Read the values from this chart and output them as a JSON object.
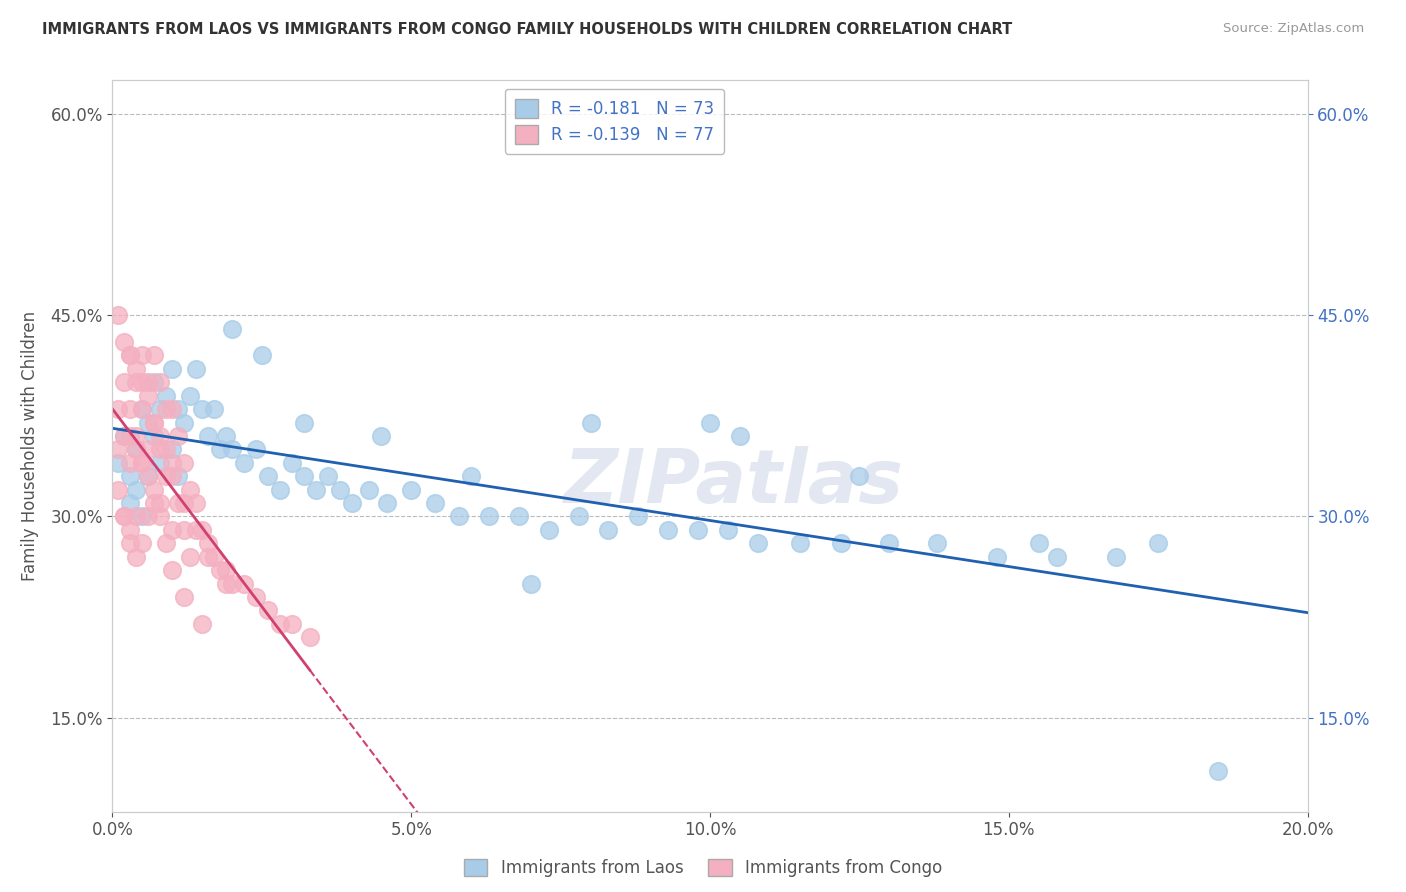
{
  "title": "IMMIGRANTS FROM LAOS VS IMMIGRANTS FROM CONGO FAMILY HOUSEHOLDS WITH CHILDREN CORRELATION CHART",
  "source": "Source: ZipAtlas.com",
  "ylabel": "Family Households with Children",
  "x_label_laos": "Immigrants from Laos",
  "x_label_congo": "Immigrants from Congo",
  "xlim": [
    0.0,
    0.2
  ],
  "ylim": [
    0.08,
    0.625
  ],
  "xticks": [
    0.0,
    0.05,
    0.1,
    0.15,
    0.2
  ],
  "yticks": [
    0.15,
    0.3,
    0.45,
    0.6
  ],
  "R_laos": -0.181,
  "N_laos": 73,
  "R_congo": -0.139,
  "N_congo": 77,
  "color_laos": "#a8cce8",
  "color_congo": "#f4afc0",
  "trendline_color_laos": "#2060b0",
  "trendline_color_congo": "#d04070",
  "watermark": "ZIPatlas",
  "background_color": "#ffffff",
  "laos_x": [
    0.001,
    0.002,
    0.003,
    0.003,
    0.004,
    0.004,
    0.005,
    0.005,
    0.006,
    0.006,
    0.007,
    0.007,
    0.008,
    0.008,
    0.009,
    0.01,
    0.01,
    0.011,
    0.011,
    0.012,
    0.013,
    0.014,
    0.015,
    0.016,
    0.017,
    0.018,
    0.019,
    0.02,
    0.022,
    0.024,
    0.026,
    0.028,
    0.03,
    0.032,
    0.034,
    0.036,
    0.038,
    0.04,
    0.043,
    0.046,
    0.05,
    0.054,
    0.058,
    0.063,
    0.068,
    0.073,
    0.078,
    0.083,
    0.088,
    0.093,
    0.098,
    0.103,
    0.108,
    0.115,
    0.122,
    0.13,
    0.138,
    0.148,
    0.158,
    0.168,
    0.02,
    0.025,
    0.032,
    0.045,
    0.06,
    0.08,
    0.1,
    0.125,
    0.155,
    0.175,
    0.185,
    0.105,
    0.07
  ],
  "laos_y": [
    0.34,
    0.36,
    0.33,
    0.31,
    0.35,
    0.32,
    0.38,
    0.3,
    0.37,
    0.33,
    0.4,
    0.36,
    0.38,
    0.34,
    0.39,
    0.41,
    0.35,
    0.38,
    0.33,
    0.37,
    0.39,
    0.41,
    0.38,
    0.36,
    0.38,
    0.35,
    0.36,
    0.35,
    0.34,
    0.35,
    0.33,
    0.32,
    0.34,
    0.33,
    0.32,
    0.33,
    0.32,
    0.31,
    0.32,
    0.31,
    0.32,
    0.31,
    0.3,
    0.3,
    0.3,
    0.29,
    0.3,
    0.29,
    0.3,
    0.29,
    0.29,
    0.29,
    0.28,
    0.28,
    0.28,
    0.28,
    0.28,
    0.27,
    0.27,
    0.27,
    0.44,
    0.42,
    0.37,
    0.36,
    0.33,
    0.37,
    0.37,
    0.33,
    0.28,
    0.28,
    0.11,
    0.36,
    0.25
  ],
  "congo_x": [
    0.001,
    0.001,
    0.001,
    0.002,
    0.002,
    0.002,
    0.003,
    0.003,
    0.003,
    0.003,
    0.004,
    0.004,
    0.004,
    0.005,
    0.005,
    0.005,
    0.005,
    0.006,
    0.006,
    0.006,
    0.007,
    0.007,
    0.007,
    0.008,
    0.008,
    0.008,
    0.009,
    0.009,
    0.01,
    0.01,
    0.01,
    0.011,
    0.011,
    0.012,
    0.012,
    0.013,
    0.013,
    0.014,
    0.015,
    0.016,
    0.017,
    0.018,
    0.019,
    0.02,
    0.022,
    0.024,
    0.026,
    0.028,
    0.03,
    0.033,
    0.001,
    0.002,
    0.003,
    0.004,
    0.005,
    0.006,
    0.007,
    0.008,
    0.009,
    0.01,
    0.012,
    0.014,
    0.016,
    0.019,
    0.003,
    0.004,
    0.005,
    0.006,
    0.007,
    0.008,
    0.002,
    0.003,
    0.004,
    0.01,
    0.015,
    0.012,
    0.009
  ],
  "congo_y": [
    0.38,
    0.35,
    0.32,
    0.4,
    0.36,
    0.3,
    0.42,
    0.38,
    0.34,
    0.28,
    0.4,
    0.36,
    0.3,
    0.42,
    0.38,
    0.34,
    0.28,
    0.4,
    0.35,
    0.3,
    0.42,
    0.37,
    0.31,
    0.4,
    0.35,
    0.3,
    0.38,
    0.33,
    0.38,
    0.34,
    0.29,
    0.36,
    0.31,
    0.34,
    0.29,
    0.32,
    0.27,
    0.31,
    0.29,
    0.28,
    0.27,
    0.26,
    0.26,
    0.25,
    0.25,
    0.24,
    0.23,
    0.22,
    0.22,
    0.21,
    0.45,
    0.43,
    0.42,
    0.41,
    0.4,
    0.39,
    0.37,
    0.36,
    0.35,
    0.33,
    0.31,
    0.29,
    0.27,
    0.25,
    0.36,
    0.35,
    0.34,
    0.33,
    0.32,
    0.31,
    0.3,
    0.29,
    0.27,
    0.26,
    0.22,
    0.24,
    0.28
  ]
}
